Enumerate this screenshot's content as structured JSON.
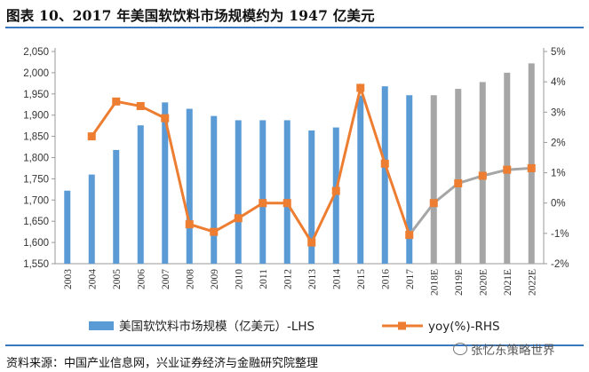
{
  "title": "图表 10、2017 年美国软饮料市场规模约为 1947 亿美元",
  "source": "资料来源：中国产业信息网，兴业证券经济与金融研究院整理",
  "watermark": "张忆东策略世界",
  "colors": {
    "bar_actual": "#5b9bd5",
    "bar_estimate": "#a6a6a6",
    "line_actual": "#ed7d31",
    "line_estimate": "#a6a6a6"
  },
  "chart_data": {
    "type": "bar+line",
    "categories": [
      "2003",
      "2004",
      "2005",
      "2006",
      "2007",
      "2008",
      "2009",
      "2010",
      "2011",
      "2012",
      "2013",
      "2014",
      "2015",
      "2016",
      "2017",
      "2018E",
      "2019E",
      "2020E",
      "2021E",
      "2022E"
    ],
    "estimate_from_index": 15,
    "series": [
      {
        "name": "美国软饮料市场规模（亿美元）-LHS",
        "kind": "bar",
        "axis": "left",
        "values": [
          1722,
          1760,
          1818,
          1876,
          1930,
          1915,
          1898,
          1888,
          1888,
          1888,
          1864,
          1871,
          1946,
          1968,
          1947,
          1947,
          1962,
          1978,
          2000,
          2022
        ]
      },
      {
        "name": "yoy(%)-RHS",
        "kind": "line",
        "axis": "right",
        "values": [
          null,
          2.2,
          3.35,
          3.2,
          2.8,
          -0.7,
          -0.95,
          -0.5,
          0.0,
          0.0,
          -1.3,
          0.4,
          3.8,
          1.3,
          -1.05,
          0.0,
          0.65,
          0.9,
          1.1,
          1.15
        ]
      }
    ],
    "y_left": {
      "min": 1550,
      "max": 2050,
      "step": 50,
      "ticks": [
        "1,550",
        "1,600",
        "1,650",
        "1,700",
        "1,750",
        "1,800",
        "1,850",
        "1,900",
        "1,950",
        "2,000",
        "2,050"
      ]
    },
    "y_right": {
      "min": -2,
      "max": 5,
      "step": 1,
      "ticks": [
        "-2%",
        "-1%",
        "0%",
        "1%",
        "2%",
        "3%",
        "4%",
        "5%"
      ]
    },
    "legend": [
      {
        "label": "美国软饮料市场规模（亿美元）-LHS",
        "kind": "bar"
      },
      {
        "label": "yoy(%)-RHS",
        "kind": "line"
      }
    ],
    "legend_position": "bottom"
  }
}
